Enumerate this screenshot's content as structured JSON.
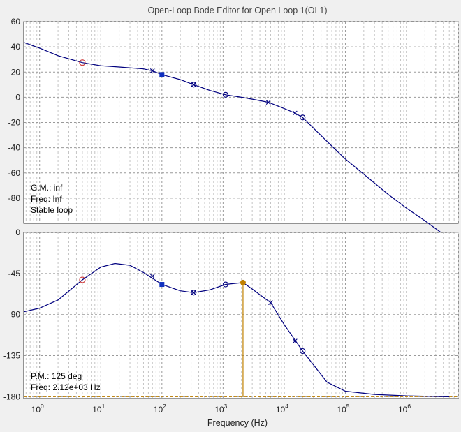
{
  "window": {
    "title": "Open-Loop Bode Editor for Open Loop 1(OL1)"
  },
  "colors": {
    "curve": "#00007f",
    "background": "#f0f0f0",
    "axes_bg": "#ffffff",
    "marker_red": "#d04040",
    "marker_pole": "#1030c0",
    "pm_marker": "#c08000"
  },
  "chart_data": [
    {
      "type": "line",
      "panel": "magnitude",
      "ylabel": "",
      "xscale": "log",
      "xlim": [
        0.55,
        7000000
      ],
      "ylim": [
        -100,
        60
      ],
      "yticks": [
        60,
        40,
        20,
        0,
        -20,
        -40,
        -60,
        -80
      ],
      "grid": true,
      "series": [
        {
          "x": [
            0.55,
            1,
            2,
            5,
            10,
            20,
            50,
            70,
            100,
            200,
            330,
            600,
            1100,
            2000,
            3000,
            5500,
            10000,
            15000,
            20000,
            50000,
            100000,
            200000,
            500000,
            1000000,
            2000000,
            5000000
          ],
          "y": [
            43.5,
            39,
            33,
            27.5,
            25,
            24,
            22.5,
            21,
            18,
            14,
            10,
            5.5,
            2,
            0,
            -1.5,
            -4,
            -9,
            -12.5,
            -16,
            -35,
            -49,
            -61,
            -77,
            -88,
            -98,
            -112
          ]
        }
      ],
      "markers": [
        {
          "x": 5,
          "y": 27.5,
          "kind": "compensator-zero"
        },
        {
          "x": 100,
          "y": 18,
          "kind": "compensator-pole"
        },
        {
          "x": 330,
          "y": 10,
          "kind": "zero"
        },
        {
          "x": 1100,
          "y": 2,
          "kind": "zero"
        },
        {
          "x": 20000,
          "y": -16,
          "kind": "zero"
        },
        {
          "x": 70,
          "y": 21,
          "kind": "pole"
        },
        {
          "x": 330,
          "y": 10,
          "kind": "pole"
        },
        {
          "x": 5500,
          "y": -4,
          "kind": "pole"
        },
        {
          "x": 15000,
          "y": -12.5,
          "kind": "pole"
        }
      ],
      "annotations": [
        "G.M.: inf",
        "Freq: Inf",
        "Stable loop"
      ]
    },
    {
      "type": "line",
      "panel": "phase",
      "xlabel": "Frequency (Hz)",
      "xscale": "log",
      "xlim": [
        0.55,
        7000000
      ],
      "ylim": [
        -182,
        0
      ],
      "yticks": [
        0,
        -45,
        -90,
        -135,
        -180
      ],
      "xticks": [
        "10^0",
        "10^1",
        "10^2",
        "10^3",
        "10^4",
        "10^5",
        "10^6"
      ],
      "grid": true,
      "series": [
        {
          "x": [
            0.55,
            1,
            2,
            5,
            10,
            17,
            30,
            50,
            100,
            200,
            330,
            600,
            1100,
            2120,
            3000,
            6000,
            10000,
            20000,
            50000,
            100000,
            300000,
            1000000,
            5000000
          ],
          "y": [
            -87,
            -83,
            -74,
            -52,
            -38,
            -34,
            -36,
            -44,
            -57,
            -64,
            -66,
            -63,
            -57,
            -55,
            -62,
            -77,
            -101,
            -130,
            -164,
            -174,
            -177.5,
            -179,
            -180
          ]
        }
      ],
      "markers": [
        {
          "x": 5,
          "y": -52,
          "kind": "compensator-zero"
        },
        {
          "x": 100,
          "y": -57,
          "kind": "compensator-pole"
        },
        {
          "x": 330,
          "y": -66,
          "kind": "zero"
        },
        {
          "x": 1100,
          "y": -57,
          "kind": "zero"
        },
        {
          "x": 20000,
          "y": -130,
          "kind": "zero"
        },
        {
          "x": 70,
          "y": -48,
          "kind": "pole"
        },
        {
          "x": 330,
          "y": -66,
          "kind": "pole"
        },
        {
          "x": 6000,
          "y": -77,
          "kind": "pole"
        },
        {
          "x": 15000,
          "y": -119,
          "kind": "pole"
        }
      ],
      "pm_marker": {
        "x": 2120,
        "y": -55
      },
      "annotations": [
        "P.M.: 125 deg",
        "Freq: 2.12e+03 Hz"
      ]
    }
  ]
}
